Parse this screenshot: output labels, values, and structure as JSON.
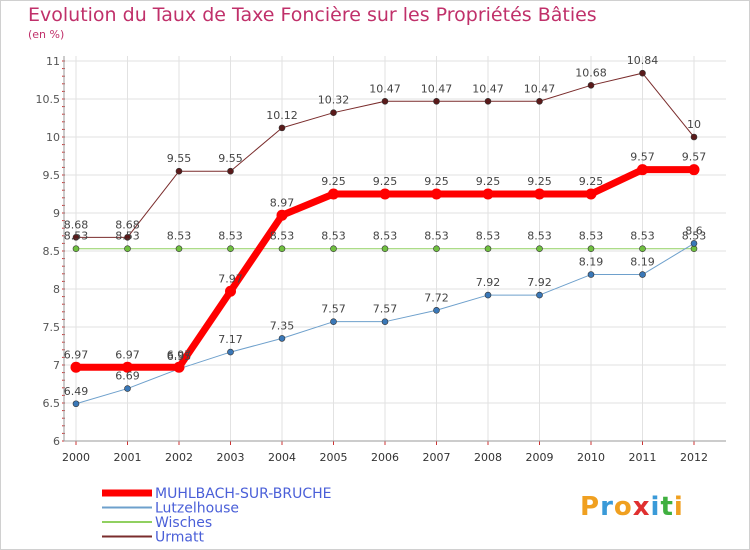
{
  "chart_data": {
    "type": "line",
    "title": "Evolution du Taux de Taxe Foncière sur les Propriétés Bâties",
    "subtitle": "(en %)",
    "x": [
      "2000",
      "2001",
      "2002",
      "2003",
      "2004",
      "2005",
      "2006",
      "2007",
      "2008",
      "2009",
      "2010",
      "2011",
      "2012"
    ],
    "ylim": [
      6,
      11
    ],
    "yticks": [
      6,
      6.5,
      7,
      7.5,
      8,
      8.5,
      9,
      9.5,
      10,
      10.5,
      11
    ],
    "ytick_labels": [
      "6",
      "6.5",
      "7",
      "7.5",
      "8",
      "8.5",
      "9",
      "9.5",
      "10",
      "10.5",
      "11"
    ],
    "grid": true,
    "legend_position": "bottom-left",
    "series": [
      {
        "name": "Urmatt",
        "color": "#7a2c2c",
        "marker": "#5a1a1a",
        "width": 1,
        "values": [
          8.68,
          8.68,
          9.55,
          9.55,
          10.12,
          10.32,
          10.47,
          10.47,
          10.47,
          10.47,
          10.68,
          10.84,
          10
        ],
        "labels": [
          "8.68",
          "8.68",
          "9.55",
          "9.55",
          "10.12",
          "10.32",
          "10.47",
          "10.47",
          "10.47",
          "10.47",
          "10.68",
          "10.84",
          "10"
        ]
      },
      {
        "name": "Wisches",
        "color": "#90d060",
        "marker": "#70c040",
        "width": 1,
        "values": [
          8.53,
          8.53,
          8.53,
          8.53,
          8.53,
          8.53,
          8.53,
          8.53,
          8.53,
          8.53,
          8.53,
          8.53,
          8.53
        ],
        "labels": [
          "8.53",
          "8.53",
          "8.53",
          "8.53",
          "8.53",
          "8.53",
          "8.53",
          "8.53",
          "8.53",
          "8.53",
          "8.53",
          "8.53",
          "8.53"
        ]
      },
      {
        "name": "Lutzelhouse",
        "color": "#6ea0cc",
        "marker": "#3a78b8",
        "width": 1,
        "values": [
          6.49,
          6.69,
          6.95,
          7.17,
          7.35,
          7.57,
          7.57,
          7.72,
          7.92,
          7.92,
          8.19,
          8.19,
          8.6
        ],
        "labels": [
          "6.49",
          "6.69",
          "6.95",
          "7.17",
          "7.35",
          "7.57",
          "7.57",
          "7.72",
          "7.92",
          "7.92",
          "8.19",
          "8.19",
          "8.6"
        ]
      },
      {
        "name": "MUHLBACH-SUR-BRUCHE",
        "color": "#ff0000",
        "marker": "#ff0000",
        "width": 7,
        "values": [
          6.97,
          6.97,
          6.97,
          7.97,
          8.97,
          9.25,
          9.25,
          9.25,
          9.25,
          9.25,
          9.25,
          9.57,
          9.57
        ],
        "labels": [
          "6.97",
          "6.97",
          "6.97",
          "7.97",
          "8.97",
          "9.25",
          "9.25",
          "9.25",
          "9.25",
          "9.25",
          "9.25",
          "9.57",
          "9.57"
        ]
      }
    ],
    "legend": [
      {
        "name": "MUHLBACH-SUR-BRUCHE",
        "color": "#ff0000",
        "width": 7
      },
      {
        "name": "Lutzelhouse",
        "color": "#6ea0cc",
        "width": 2
      },
      {
        "name": "Wisches",
        "color": "#90d060",
        "width": 2
      },
      {
        "name": "Urmatt",
        "color": "#7a2c2c",
        "width": 2
      }
    ]
  },
  "logo": {
    "letters": [
      "P",
      "r",
      "o",
      "x",
      "i",
      "t",
      "i"
    ],
    "colors": [
      "#f0a020",
      "#3a9ad8",
      "#f0a020",
      "#e03030",
      "#3a9ad8",
      "#40b040",
      "#f0a020"
    ]
  }
}
